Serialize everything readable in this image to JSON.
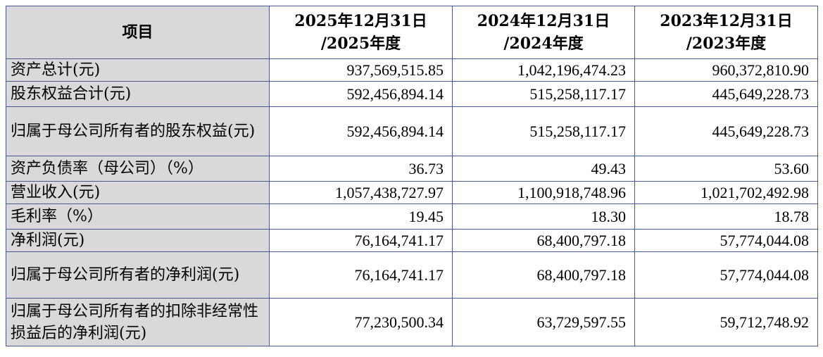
{
  "header": {
    "label": "项目",
    "periods": [
      {
        "line1": "2025年12月31日",
        "line2": "/2025年度"
      },
      {
        "line1": "2024年12月31日",
        "line2": "/2024年度"
      },
      {
        "line1": "2023年12月31日",
        "line2": "/2023年度"
      }
    ]
  },
  "rows": [
    {
      "label": "资产总计(元)",
      "values": [
        "937,569,515.85",
        "1,042,196,474.23",
        "960,372,810.90"
      ]
    },
    {
      "label": "股东权益合计(元)",
      "values": [
        "592,456,894.14",
        "515,258,117.17",
        "445,649,228.73"
      ]
    },
    {
      "label": "归属于母公司所有者的股东权益(元)",
      "values": [
        "592,456,894.14",
        "515,258,117.17",
        "445,649,228.73"
      ]
    },
    {
      "label": "资产负债率（母公司）（%）",
      "values": [
        "36.73",
        "49.43",
        "53.60"
      ]
    },
    {
      "label": "营业收入(元)",
      "values": [
        "1,057,438,727.97",
        "1,100,918,748.96",
        "1,021,702,492.98"
      ]
    },
    {
      "label": "毛利率（%）",
      "values": [
        "19.45",
        "18.30",
        "18.78"
      ]
    },
    {
      "label": "净利润(元)",
      "values": [
        "76,164,741.17",
        "68,400,797.18",
        "57,774,044.08"
      ]
    },
    {
      "label": "归属于母公司所有者的净利润(元)",
      "values": [
        "76,164,741.17",
        "68,400,797.18",
        "57,774,044.08"
      ]
    },
    {
      "label": "归属于母公司所有者的扣除非经常性损益后的净利润(元)",
      "values": [
        "77,230,500.34",
        "63,729,597.55",
        "59,712,748.92"
      ]
    }
  ]
}
